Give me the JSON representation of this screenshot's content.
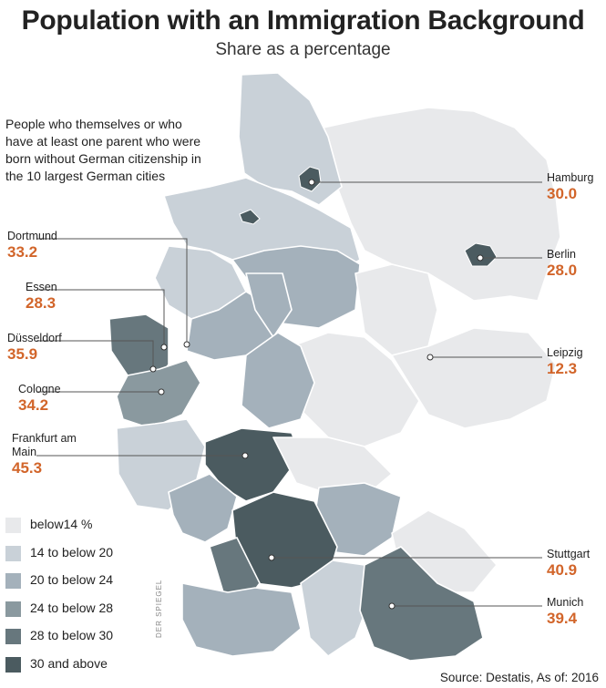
{
  "title": "Population with an Immigration Background",
  "subtitle": "Share as a percentage",
  "intro": "People who themselves or who have at least one parent who were born without German citizenship in the 10 largest German cities",
  "colors": {
    "c1": "#e8e9eb",
    "c2": "#c9d1d8",
    "c3": "#a4b1bb",
    "c4": "#8a999f",
    "c5": "#67777d",
    "c6": "#4b5b60",
    "accent": "#d2652a",
    "border": "#ffffff"
  },
  "legend": [
    {
      "label": "below14 %",
      "class": "c1"
    },
    {
      "label": "14 to below 20",
      "class": "c2"
    },
    {
      "label": "20 to below 24",
      "class": "c3"
    },
    {
      "label": "24 to below 28",
      "class": "c4"
    },
    {
      "label": "28 to below 30",
      "class": "c5"
    },
    {
      "label": "30 and above",
      "class": "c6"
    }
  ],
  "cities": {
    "hamburg": {
      "name": "Hamburg",
      "value": "30.0"
    },
    "berlin": {
      "name": "Berlin",
      "value": "28.0"
    },
    "leipzig": {
      "name": "Leipzig",
      "value": "12.3"
    },
    "stuttgart": {
      "name": "Stuttgart",
      "value": "40.9"
    },
    "munich": {
      "name": "Munich",
      "value": "39.4"
    },
    "dortmund": {
      "name": "Dortmund",
      "value": "33.2"
    },
    "essen": {
      "name": "Essen",
      "value": "28.3"
    },
    "duesseldorf": {
      "name": "Düsseldorf",
      "value": "35.9"
    },
    "cologne": {
      "name": "Cologne",
      "value": "34.2"
    },
    "frankfurt": {
      "name": "Frankfurt am Main",
      "value": "45.3"
    }
  },
  "source": "Source: Destatis, As of: 2016",
  "credit": "DER SPIEGEL"
}
